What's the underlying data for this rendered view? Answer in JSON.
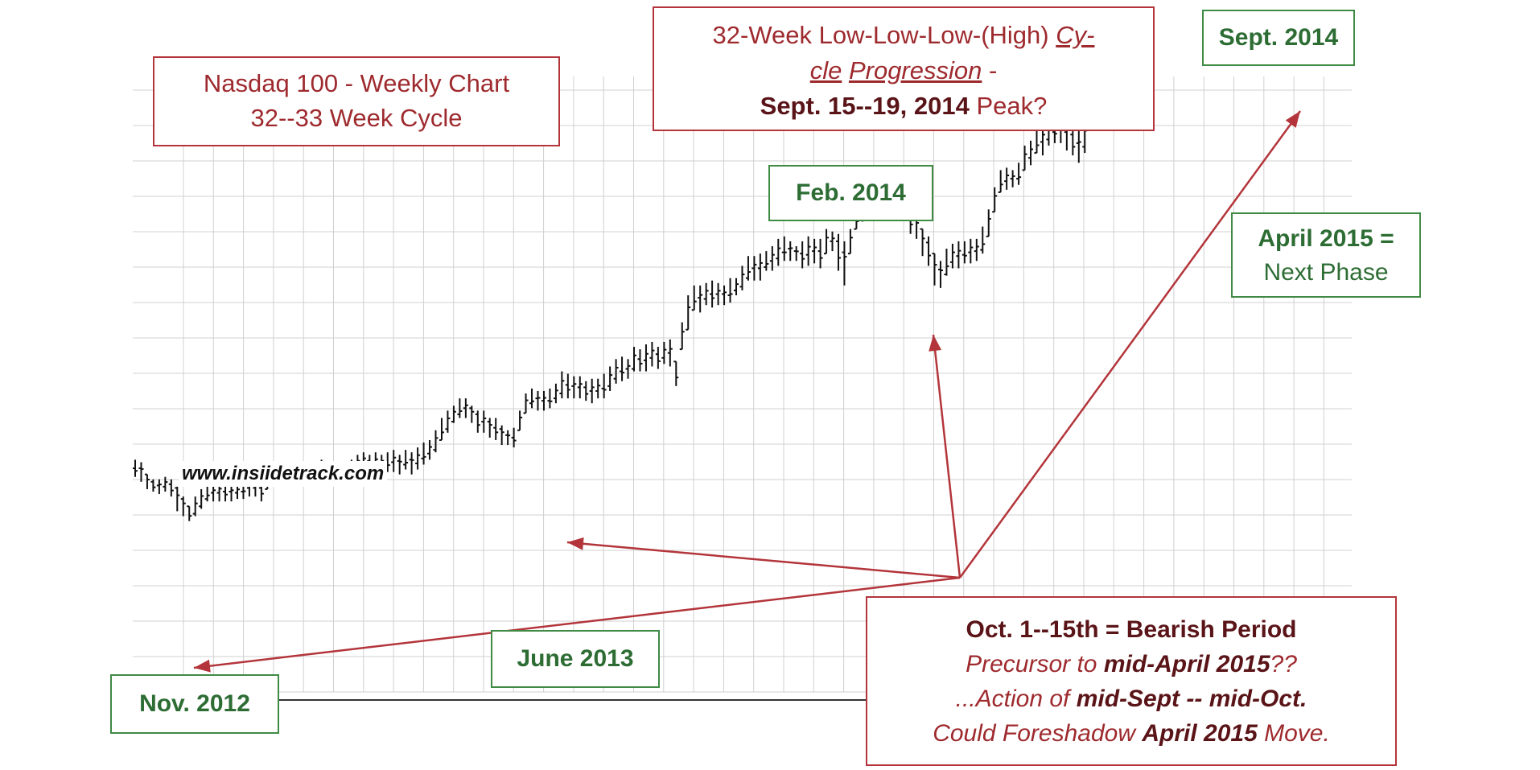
{
  "chart_data": {
    "type": "bar",
    "subtype": "ohlc",
    "frequency": "weekly",
    "x_start": "Oct. 2012",
    "weeks_per_gridline": 8,
    "y_range_relative": [
      0,
      100
    ],
    "grid": true,
    "high_low": [
      [
        93,
        86
      ],
      [
        92,
        84
      ],
      [
        87,
        81
      ],
      [
        85,
        80
      ],
      [
        85,
        79
      ],
      [
        86,
        80
      ],
      [
        85,
        78
      ],
      [
        82,
        72
      ],
      [
        78,
        70
      ],
      [
        74,
        68
      ],
      [
        78,
        70
      ],
      [
        81,
        73
      ],
      [
        83,
        76
      ],
      [
        83,
        76
      ],
      [
        84,
        76
      ],
      [
        84,
        76
      ],
      [
        83,
        76
      ],
      [
        83,
        77
      ],
      [
        86,
        77
      ],
      [
        85,
        78
      ],
      [
        85,
        78
      ],
      [
        85,
        76
      ],
      [
        89,
        81
      ],
      [
        91,
        83
      ],
      [
        91,
        83
      ],
      [
        90,
        83
      ],
      [
        91,
        83
      ],
      [
        91,
        84
      ],
      [
        92,
        84
      ],
      [
        91,
        83
      ],
      [
        92,
        85
      ],
      [
        93,
        85
      ],
      [
        91,
        84
      ],
      [
        90,
        84
      ],
      [
        89,
        82
      ],
      [
        89,
        82
      ],
      [
        93,
        84
      ],
      [
        95,
        88
      ],
      [
        96,
        89
      ],
      [
        95,
        89
      ],
      [
        96,
        88
      ],
      [
        95,
        88
      ],
      [
        96,
        88
      ],
      [
        97,
        88
      ],
      [
        95,
        87
      ],
      [
        97,
        89
      ],
      [
        96,
        87
      ],
      [
        98,
        89
      ],
      [
        100,
        91
      ],
      [
        101,
        93
      ],
      [
        105,
        96
      ],
      [
        110,
        101
      ],
      [
        113,
        104
      ],
      [
        115,
        108
      ],
      [
        118,
        110
      ],
      [
        118,
        110
      ],
      [
        115,
        108
      ],
      [
        113,
        104
      ],
      [
        113,
        104
      ],
      [
        110,
        102
      ],
      [
        110,
        101
      ],
      [
        107,
        99
      ],
      [
        105,
        99
      ],
      [
        106,
        98
      ],
      [
        113,
        105
      ],
      [
        120,
        112
      ],
      [
        122,
        114
      ],
      [
        121,
        113
      ],
      [
        121,
        113
      ],
      [
        122,
        114
      ],
      [
        124,
        116
      ],
      [
        129,
        118
      ],
      [
        128,
        118
      ],
      [
        127,
        118
      ],
      [
        127,
        118
      ],
      [
        125,
        117
      ],
      [
        126,
        116
      ],
      [
        126,
        118
      ],
      [
        128,
        118
      ],
      [
        131,
        121
      ],
      [
        134,
        124
      ],
      [
        135,
        125
      ],
      [
        134,
        126
      ],
      [
        139,
        129
      ],
      [
        138,
        129
      ],
      [
        140,
        129
      ],
      [
        141,
        131
      ],
      [
        139,
        130
      ],
      [
        141,
        132
      ],
      [
        142,
        131
      ],
      [
        133,
        123
      ],
      [
        149,
        138
      ],
      [
        160,
        146
      ],
      [
        164,
        154
      ],
      [
        164,
        153
      ],
      [
        165,
        156
      ],
      [
        166,
        155
      ],
      [
        165,
        156
      ],
      [
        164,
        156
      ],
      [
        167,
        157
      ],
      [
        167,
        160
      ],
      [
        172,
        162
      ],
      [
        176,
        166
      ],
      [
        176,
        166
      ],
      [
        177,
        166
      ],
      [
        178,
        170
      ],
      [
        180,
        170
      ],
      [
        183,
        172
      ],
      [
        184,
        174
      ],
      [
        182,
        174
      ],
      [
        180,
        174
      ],
      [
        182,
        171
      ],
      [
        184,
        172
      ],
      [
        183,
        173
      ],
      [
        183,
        171
      ],
      [
        187,
        177
      ],
      [
        186,
        178
      ],
      [
        185,
        170
      ],
      [
        182,
        164
      ],
      [
        187,
        177
      ],
      [
        196,
        187
      ],
      [
        199,
        190
      ],
      [
        201,
        191
      ],
      [
        202,
        193
      ],
      [
        204,
        194
      ],
      [
        206,
        194
      ],
      [
        203,
        192
      ],
      [
        204,
        192
      ],
      [
        201,
        192
      ],
      [
        196,
        185
      ],
      [
        193,
        183
      ],
      [
        187,
        176
      ],
      [
        184,
        172
      ],
      [
        177,
        164
      ],
      [
        174,
        163
      ],
      [
        179,
        168
      ],
      [
        181,
        171
      ],
      [
        182,
        171
      ],
      [
        182,
        173
      ],
      [
        183,
        173
      ],
      [
        183,
        174
      ],
      [
        188,
        177
      ],
      [
        195,
        184
      ],
      [
        204,
        194
      ],
      [
        211,
        202
      ],
      [
        212,
        203
      ],
      [
        211,
        204
      ],
      [
        214,
        205
      ],
      [
        221,
        211
      ],
      [
        223,
        213
      ],
      [
        227,
        218
      ],
      [
        230,
        217
      ],
      [
        232,
        221
      ],
      [
        233,
        222
      ],
      [
        231,
        222
      ],
      [
        232,
        219
      ],
      [
        227,
        217
      ],
      [
        227,
        214
      ],
      [
        232,
        218
      ],
      [
        240,
        230
      ],
      [
        247,
        238
      ],
      [
        249,
        240
      ],
      [
        250,
        242
      ],
      [
        251,
        242
      ],
      [
        247,
        237
      ],
      [
        244,
        233
      ]
    ],
    "annotations": {
      "nov_2012": "Nov. 2012",
      "june_2013": "June 2013",
      "feb_2014": "Feb. 2014",
      "sept_2014": "Sept. 2014",
      "april_2015_1": "April 2015 =",
      "april_2015_2": "Next Phase"
    }
  },
  "title_box": {
    "line1": "Nasdaq 100 - Weekly Chart",
    "line2": "32--33 Week Cycle"
  },
  "cycle_box": {
    "line1_a": "32-Week Low-Low-Low-(High) ",
    "line1_b": "Cy-",
    "line2_a": "cle",
    "line2_b": " ",
    "line2_c": "Progression",
    "line2_d": " -",
    "line3_a": "Sept. 15--19, 2014",
    "line3_b": " Peak?"
  },
  "bearish_box": {
    "line1": "Oct. 1--15th = Bearish Period",
    "line2_a": "Precursor to ",
    "line2_b": "mid-April 2015",
    "line2_c": "??",
    "line3_a": "...Action of ",
    "line3_b": "mid-Sept -- mid-Oct.",
    "line4_a": "Could Foreshadow ",
    "line4_b": "April 2015",
    "line4_c": " Move."
  },
  "source": "www.insiidetrack.com",
  "colors": {
    "red_text": "#9e2a2e",
    "red_arrow": "#b3353b",
    "green_text": "#2d6d34",
    "grid": "#d0d0d0",
    "bars": "#111111"
  }
}
